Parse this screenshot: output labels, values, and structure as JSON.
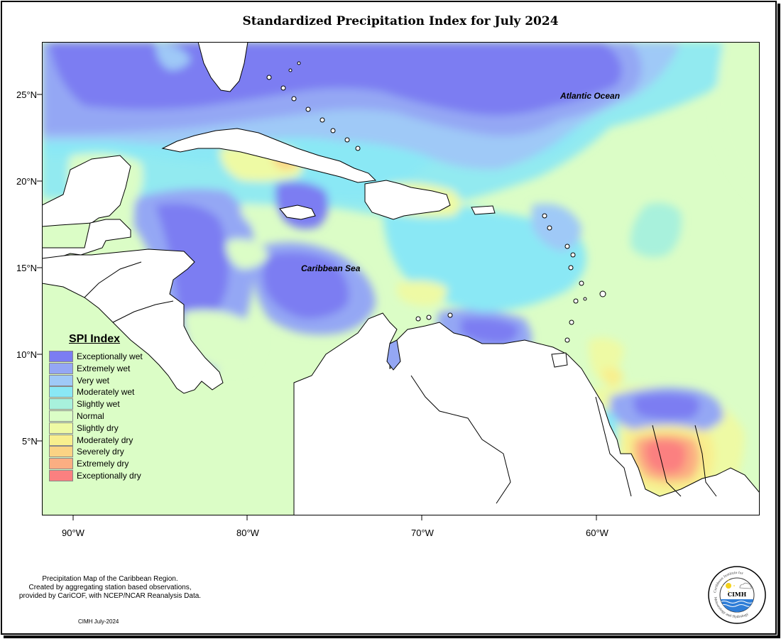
{
  "title": "Standardized Precipitation Index for July 2024",
  "axes": {
    "lon_ticks": [
      "90°W",
      "80°W",
      "70°W",
      "60°W"
    ],
    "lat_ticks": [
      "25°N",
      "20°N",
      "15°N",
      "10°N",
      "5°N"
    ]
  },
  "map_labels": {
    "atlantic": "Atlantic Ocean",
    "caribbean": "Caribbean Sea"
  },
  "legend": {
    "title": "SPI Index",
    "items": [
      {
        "label": "Exceptionally wet",
        "color": "#7b7df2"
      },
      {
        "label": "Extremely wet",
        "color": "#94a7f4"
      },
      {
        "label": "Very wet",
        "color": "#9fc9f7"
      },
      {
        "label": "Moderately wet",
        "color": "#8ae8f5"
      },
      {
        "label": "Slightly wet",
        "color": "#a8f1dc"
      },
      {
        "label": "Normal",
        "color": "#dbfdc6"
      },
      {
        "label": "Slightly dry",
        "color": "#eefaa4"
      },
      {
        "label": "Moderately dry",
        "color": "#f8ef8e"
      },
      {
        "label": "Severely dry",
        "color": "#fbd384"
      },
      {
        "label": "Extremely dry",
        "color": "#fbae82"
      },
      {
        "label": "Exceptionally dry",
        "color": "#fb8080"
      }
    ]
  },
  "footer": {
    "lines": [
      "Precipitation Map of the Caribbean Region.",
      "Created by aggregating station based observations,",
      "provided by CariCOF, with NCEP/NCAR Reanalysis Data."
    ],
    "date": "CIMH July-2024"
  },
  "logo": {
    "org": "CIMH",
    "ring_top": "Caribbean Institute for",
    "ring_bottom": "Meteorology and Hydrology"
  }
}
